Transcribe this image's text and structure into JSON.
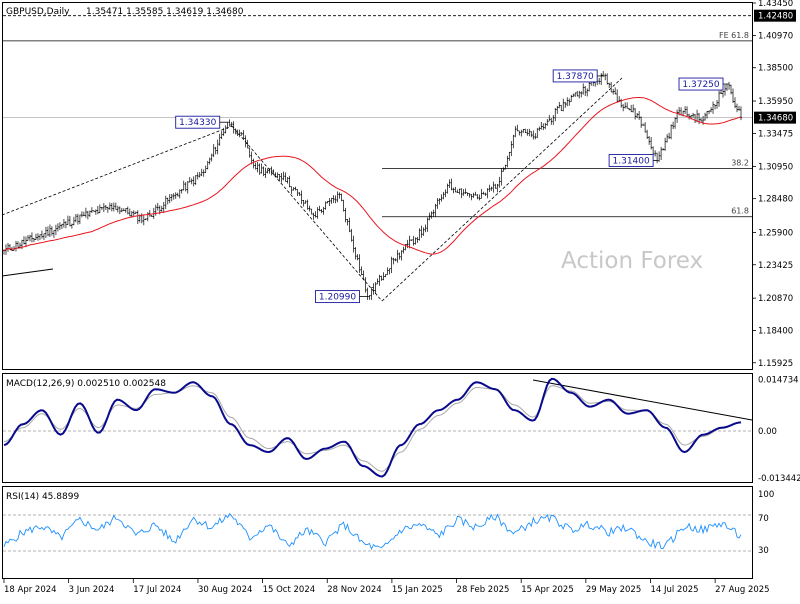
{
  "window": {
    "main_title": "GBPUSD,Daily",
    "ohlc": "1.35471 1.35585 1.34619 1.34680",
    "watermark": "Action Forex",
    "macd_title": "MACD(12,26,9) 0.002510 0.002548",
    "rsi_title": "RSI(14) 45.8899"
  },
  "colors": {
    "candle": "#000000",
    "ma": "#e8141e",
    "macd_main": "#0a0a8c",
    "macd_signal": "#a8a8a8",
    "rsi": "#1e90ff",
    "callout_border": "#1a1aa0",
    "price_tag_bg": "#000000"
  },
  "chart_data": [
    {
      "type": "candlestick",
      "title": "GBPUSD,Daily",
      "ylim": [
        1.1545,
        1.4345
      ],
      "y_ticks": [
        "1.43450",
        "1.40970",
        "1.38500",
        "1.35950",
        "1.33475",
        "1.30950",
        "1.28480",
        "1.25900",
        "1.23425",
        "1.20870",
        "1.18400",
        "1.15925"
      ],
      "x_tick_labels": [
        "18 Apr 2024",
        "3 Jun 2024",
        "17 Jul 2024",
        "30 Aug 2024",
        "15 Oct 2024",
        "28 Nov 2024",
        "15 Jan 2025",
        "28 Feb 2025",
        "15 Apr 2025",
        "29 May 2025",
        "14 Jul 2025",
        "27 Aug 2025"
      ],
      "bars": 370,
      "key_points": [
        {
          "t": 0,
          "v": 1.245
        },
        {
          "t": 20,
          "v": 1.258
        },
        {
          "t": 40,
          "v": 1.272
        },
        {
          "t": 55,
          "v": 1.279
        },
        {
          "t": 70,
          "v": 1.269
        },
        {
          "t": 85,
          "v": 1.287
        },
        {
          "t": 100,
          "v": 1.305
        },
        {
          "t": 112,
          "v": 1.3433
        },
        {
          "t": 118,
          "v": 1.335
        },
        {
          "t": 126,
          "v": 1.308
        },
        {
          "t": 140,
          "v": 1.302
        },
        {
          "t": 155,
          "v": 1.272
        },
        {
          "t": 168,
          "v": 1.288
        },
        {
          "t": 182,
          "v": 1.2099
        },
        {
          "t": 195,
          "v": 1.238
        },
        {
          "t": 210,
          "v": 1.261
        },
        {
          "t": 222,
          "v": 1.295
        },
        {
          "t": 238,
          "v": 1.285
        },
        {
          "t": 248,
          "v": 1.298
        },
        {
          "t": 256,
          "v": 1.338
        },
        {
          "t": 265,
          "v": 1.332
        },
        {
          "t": 282,
          "v": 1.36
        },
        {
          "t": 300,
          "v": 1.3787
        },
        {
          "t": 308,
          "v": 1.36
        },
        {
          "t": 318,
          "v": 1.347
        },
        {
          "t": 327,
          "v": 1.314
        },
        {
          "t": 338,
          "v": 1.352
        },
        {
          "t": 350,
          "v": 1.345
        },
        {
          "t": 362,
          "v": 1.3725
        },
        {
          "t": 369,
          "v": 1.3468
        }
      ],
      "moving_average": "red line",
      "current_price": "1.34680",
      "price_tags": [
        "1.42480",
        "1.34680"
      ],
      "callouts": [
        "1.34330",
        "1.20990",
        "1.37870",
        "1.37250",
        "1.31400"
      ],
      "levels": [
        {
          "label": "FE 61.8",
          "value": 1.4055
        },
        {
          "label": "38.2",
          "value": 1.308
        },
        {
          "label": "61.8",
          "value": 1.271
        },
        {
          "label": "",
          "value": 1.4248
        }
      ]
    },
    {
      "type": "line",
      "title": "MACD(12,26,9) 0.002510 0.002548",
      "ylim": [
        -0.014,
        0.0155
      ],
      "y_ticks": [
        "0.014734",
        "0.00",
        "-0.013442"
      ],
      "series": [
        {
          "name": "MACD",
          "values": [
            -0.004,
            0.002,
            0.006,
            -0.001,
            0.008,
            -0.0005,
            0.009,
            0.006,
            0.012,
            0.011,
            0.014,
            0.01,
            0.002,
            -0.004,
            -0.006,
            -0.002,
            -0.008,
            -0.005,
            -0.003,
            -0.01,
            -0.013,
            -0.004,
            0.002,
            0.006,
            0.009,
            0.014,
            0.012,
            0.006,
            0.003,
            0.015,
            0.011,
            0.007,
            0.009,
            0.005,
            0.006,
            0.001,
            -0.006,
            -0.001,
            0.001,
            0.0025
          ]
        },
        {
          "name": "Signal",
          "values": [
            -0.003,
            0.001,
            0.005,
            0.0005,
            0.0065,
            0.001,
            0.0075,
            0.0065,
            0.0105,
            0.011,
            0.013,
            0.011,
            0.004,
            -0.002,
            -0.005,
            -0.003,
            -0.0065,
            -0.0055,
            -0.004,
            -0.0085,
            -0.0115,
            -0.006,
            0.0005,
            0.0045,
            0.008,
            0.0125,
            0.012,
            0.0075,
            0.004,
            0.013,
            0.0115,
            0.008,
            0.0085,
            0.006,
            0.0058,
            0.002,
            -0.004,
            -0.0015,
            0.0008,
            0.0025
          ]
        }
      ]
    },
    {
      "type": "line",
      "title": "RSI(14) 45.8899",
      "ylim": [
        0,
        100
      ],
      "y_ticks": [
        "100",
        "70",
        "30",
        "0"
      ],
      "series": [
        {
          "name": "RSI",
          "values": [
            35,
            52,
            60,
            45,
            68,
            55,
            72,
            48,
            62,
            40,
            70,
            58,
            75,
            45,
            62,
            35,
            55,
            40,
            62,
            38,
            30,
            55,
            62,
            48,
            68,
            58,
            72,
            50,
            66,
            70,
            55,
            62,
            52,
            58,
            40,
            34,
            60,
            55,
            64,
            46
          ]
        }
      ]
    }
  ]
}
